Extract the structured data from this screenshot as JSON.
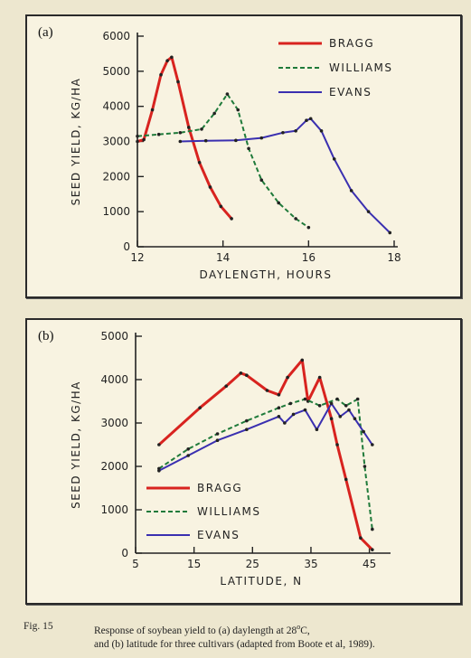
{
  "chart_data": [
    {
      "id": "a",
      "panel_label": "(a)",
      "type": "line",
      "xlabel": "DAYLENGTH, HOURS",
      "ylabel": "SEED YIELD, KG/HA",
      "xlim": [
        12,
        18
      ],
      "ylim": [
        0,
        6000
      ],
      "xticks": [
        12,
        14,
        16,
        18
      ],
      "yticks": [
        0,
        1000,
        2000,
        3000,
        4000,
        5000,
        6000
      ],
      "legend_position": "top-right",
      "series": [
        {
          "name": "BRAGG",
          "color": "#d8231f",
          "style": "solid",
          "points": [
            [
              12.0,
              3000
            ],
            [
              12.15,
              3050
            ],
            [
              12.35,
              3900
            ],
            [
              12.55,
              4900
            ],
            [
              12.7,
              5300
            ],
            [
              12.8,
              5400
            ],
            [
              12.95,
              4700
            ],
            [
              13.2,
              3400
            ],
            [
              13.45,
              2400
            ],
            [
              13.7,
              1700
            ],
            [
              13.95,
              1150
            ],
            [
              14.2,
              800
            ]
          ]
        },
        {
          "name": "WILLIAMS",
          "color": "#1f7a3a",
          "style": "dashed",
          "points": [
            [
              12.0,
              3150
            ],
            [
              12.5,
              3200
            ],
            [
              13.0,
              3250
            ],
            [
              13.5,
              3350
            ],
            [
              13.8,
              3800
            ],
            [
              14.1,
              4350
            ],
            [
              14.35,
              3900
            ],
            [
              14.6,
              2800
            ],
            [
              14.9,
              1900
            ],
            [
              15.3,
              1250
            ],
            [
              15.7,
              800
            ],
            [
              16.0,
              550
            ]
          ]
        },
        {
          "name": "EVANS",
          "color": "#3a2fb0",
          "style": "solid",
          "points": [
            [
              13.0,
              3000
            ],
            [
              13.6,
              3020
            ],
            [
              14.3,
              3030
            ],
            [
              14.9,
              3100
            ],
            [
              15.4,
              3250
            ],
            [
              15.7,
              3300
            ],
            [
              15.95,
              3600
            ],
            [
              16.05,
              3650
            ],
            [
              16.3,
              3300
            ],
            [
              16.6,
              2500
            ],
            [
              17.0,
              1600
            ],
            [
              17.4,
              1000
            ],
            [
              17.9,
              400
            ]
          ]
        }
      ]
    },
    {
      "id": "b",
      "panel_label": "(b)",
      "type": "line",
      "xlabel": "LATITUDE, N",
      "ylabel": "SEED YIELD, KG/HA",
      "xlim": [
        5,
        48
      ],
      "ylim": [
        0,
        5000
      ],
      "xticks": [
        5,
        15,
        25,
        35,
        45
      ],
      "yticks": [
        0,
        1000,
        2000,
        3000,
        4000,
        5000
      ],
      "legend_position": "bottom-left",
      "series": [
        {
          "name": "BRAGG",
          "color": "#d8231f",
          "style": "solid",
          "points": [
            [
              9,
              2500
            ],
            [
              16,
              3350
            ],
            [
              20.5,
              3850
            ],
            [
              23,
              4150
            ],
            [
              24,
              4100
            ],
            [
              27.5,
              3750
            ],
            [
              29.5,
              3650
            ],
            [
              31,
              4050
            ],
            [
              33.5,
              4450
            ],
            [
              34.5,
              3500
            ],
            [
              36.5,
              4050
            ],
            [
              38.5,
              3100
            ],
            [
              39.5,
              2500
            ],
            [
              41,
              1700
            ],
            [
              43.5,
              350
            ],
            [
              45.5,
              80
            ]
          ]
        },
        {
          "name": "WILLIAMS",
          "color": "#1f7a3a",
          "style": "dashed",
          "points": [
            [
              9,
              1950
            ],
            [
              14,
              2400
            ],
            [
              19,
              2750
            ],
            [
              24,
              3050
            ],
            [
              29.5,
              3350
            ],
            [
              31.5,
              3450
            ],
            [
              34,
              3550
            ],
            [
              36.5,
              3400
            ],
            [
              39.5,
              3550
            ],
            [
              41,
              3400
            ],
            [
              43,
              3550
            ],
            [
              44.2,
              2000
            ],
            [
              45.5,
              550
            ]
          ]
        },
        {
          "name": "EVANS",
          "color": "#3a2fb0",
          "style": "solid",
          "points": [
            [
              9,
              1900
            ],
            [
              14,
              2250
            ],
            [
              19,
              2600
            ],
            [
              24,
              2850
            ],
            [
              29.5,
              3150
            ],
            [
              30.5,
              3000
            ],
            [
              32,
              3200
            ],
            [
              34,
              3300
            ],
            [
              36,
              2850
            ],
            [
              38.5,
              3450
            ],
            [
              40,
              3150
            ],
            [
              41.5,
              3300
            ],
            [
              42.5,
              3100
            ],
            [
              44,
              2800
            ],
            [
              45.5,
              2500
            ]
          ]
        }
      ]
    }
  ],
  "caption": {
    "fig": "Fig. 15",
    "line1": "Response of soybean yield to (a) daylength at 28",
    "degree": "o",
    "unit": "C,",
    "line2": "and (b) latitude for three cultivars (adapted from Boote et al, 1989)."
  }
}
